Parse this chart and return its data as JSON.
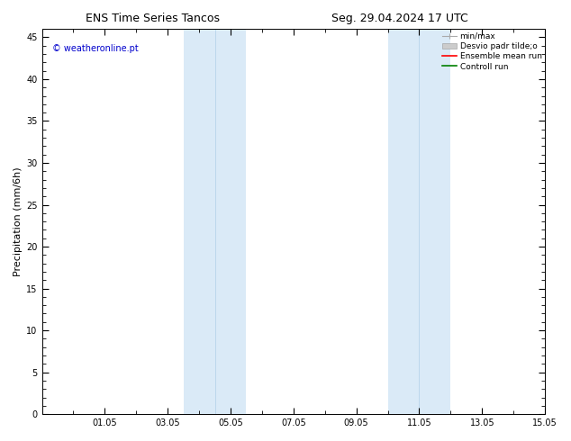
{
  "title_left": "ENS Time Series Tancos",
  "title_right": "Seg. 29.04.2024 17 UTC",
  "ylabel": "Precipitation (mm/6h)",
  "ylim": [
    0,
    46
  ],
  "yticks": [
    0,
    5,
    10,
    15,
    20,
    25,
    30,
    35,
    40,
    45
  ],
  "xtick_labels": [
    "01.05",
    "03.05",
    "05.05",
    "07.05",
    "09.05",
    "11.05",
    "13.05",
    "15.05"
  ],
  "xtick_positions": [
    2,
    4,
    6,
    8,
    10,
    12,
    14,
    16
  ],
  "xlim": [
    0,
    16
  ],
  "shaded_regions": [
    [
      4.5,
      5.5
    ],
    [
      5.5,
      6.5
    ],
    [
      11.0,
      12.0
    ],
    [
      12.0,
      13.0
    ]
  ],
  "shade_color": "#daeaf7",
  "background_color": "#ffffff",
  "watermark_text": "© weatheronline.pt",
  "watermark_color": "#0000cc",
  "title_fontsize": 9,
  "tick_fontsize": 7,
  "ylabel_fontsize": 8,
  "legend_fontsize": 6.5,
  "watermark_fontsize": 7
}
